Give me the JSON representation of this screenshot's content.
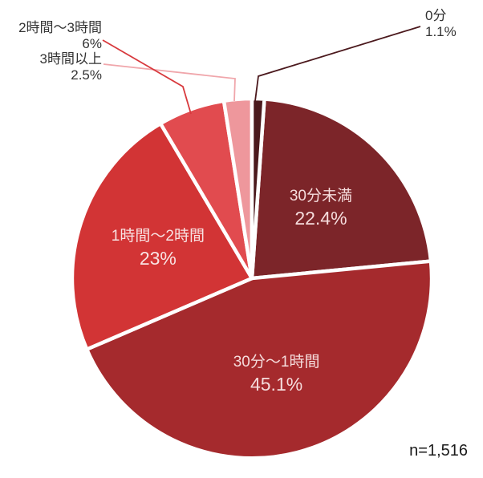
{
  "chart_data": {
    "type": "pie",
    "title": "",
    "note": "n=1,516",
    "start_angle_deg": 0,
    "direction": "clockwise",
    "slices": [
      {
        "label": "0分",
        "value": 1.1,
        "value_label": "1.1%",
        "color": "#4b191d",
        "leader_color": "#4b191d",
        "placement": "outside"
      },
      {
        "label": "30分未満",
        "value": 22.4,
        "value_label": "22.4%",
        "color": "#7c2529",
        "text_color": "#f5dcdc",
        "placement": "inside"
      },
      {
        "label": "30分〜1時間",
        "value": 45.1,
        "value_label": "45.1%",
        "color": "#a52a2d",
        "text_color": "#f5dcdc",
        "placement": "inside"
      },
      {
        "label": "1時間〜2時間",
        "value": 23,
        "value_label": "23%",
        "color": "#d23435",
        "text_color": "#f8e3e3",
        "placement": "inside"
      },
      {
        "label": "2時間〜3時間",
        "value": 6,
        "value_label": "6%",
        "color": "#e14b4f",
        "leader_color": "#d8393d",
        "placement": "outside"
      },
      {
        "label": "3時間以上",
        "value": 2.5,
        "value_label": "2.5%",
        "color": "#ee979c",
        "leader_color": "#f0a6ab",
        "placement": "outside"
      }
    ],
    "colors": {
      "background": "#ffffff",
      "slice_gap": "#ffffff",
      "outside_label_text": "#333333",
      "note_text": "#1a1a1a"
    },
    "legend": "none",
    "labels_on_slices": true
  }
}
